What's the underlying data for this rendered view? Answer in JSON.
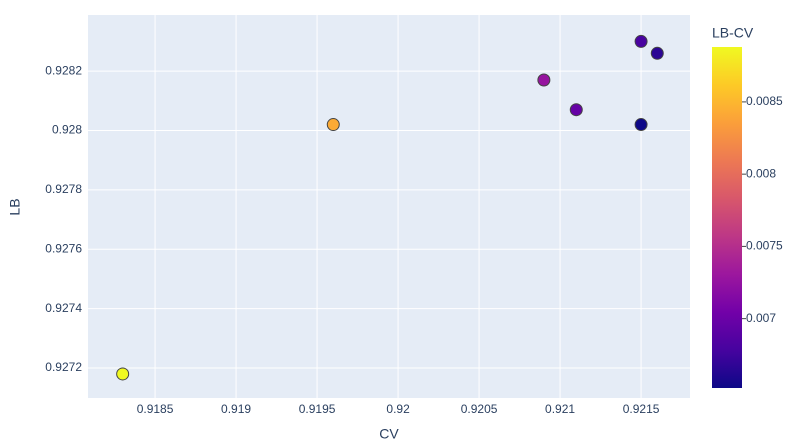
{
  "chart_data": {
    "type": "scatter",
    "x_label": "CV",
    "y_label": "LB",
    "x": [
      0.9183,
      0.9196,
      0.9209,
      0.9211,
      0.9215,
      0.9216,
      0.9215
    ],
    "values": [
      0.92718,
      0.92802,
      0.92817,
      0.92807,
      0.9283,
      0.92826,
      0.92802
    ],
    "color_label": "LB-CV",
    "color_values": [
      0.00888,
      0.00842,
      0.00727,
      0.00697,
      0.0068,
      0.00666,
      0.00652
    ],
    "colorscale": [
      "#0d0887",
      "#46039f",
      "#7201a8",
      "#9c179e",
      "#bd3786",
      "#d8576b",
      "#ed7953",
      "#fb9f3a",
      "#fdca26",
      "#f0f921"
    ],
    "clim": [
      0.00652,
      0.00888
    ],
    "cticks": [
      0.007,
      0.0075,
      0.008,
      0.0085
    ],
    "xlim": [
      0.918086,
      0.921802
    ],
    "xticks": [
      0.9185,
      0.919,
      0.9195,
      0.92,
      0.9205,
      0.921,
      0.9215
    ],
    "ylim": [
      0.927099,
      0.928389
    ],
    "yticks": [
      0.9272,
      0.9274,
      0.9276,
      0.9278,
      0.928,
      0.9282
    ],
    "grid": true
  }
}
